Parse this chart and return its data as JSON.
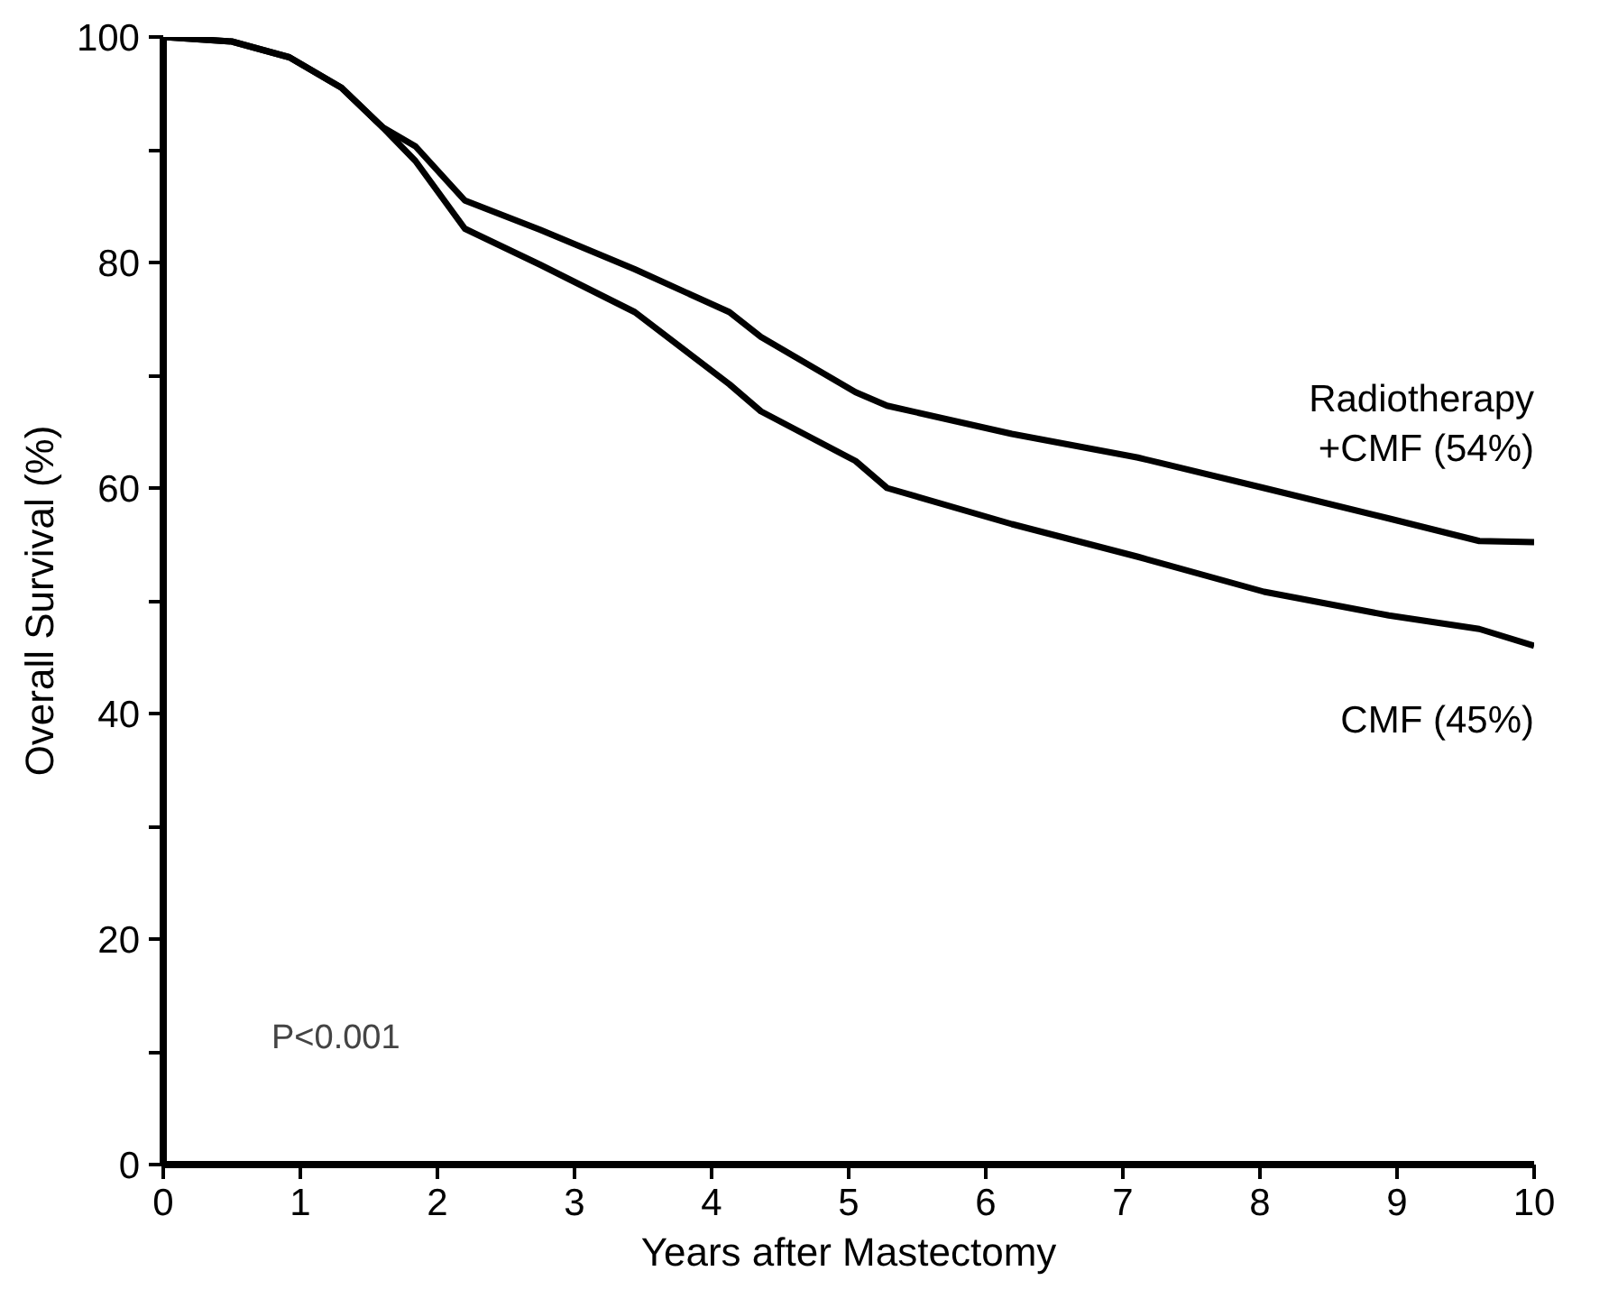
{
  "chart_data": {
    "type": "line",
    "xlabel": "Years after Mastectomy",
    "ylabel": "Overall Survival (%)",
    "xlim": [
      0,
      10
    ],
    "ylim": [
      0,
      100
    ],
    "xticks": [
      0,
      1,
      2,
      3,
      4,
      5,
      6,
      7,
      8,
      9,
      10
    ],
    "yticks": [
      0,
      {
        "value": 10,
        "label": null
      },
      20,
      {
        "value": 30,
        "label": null
      },
      40,
      {
        "value": 50,
        "label": null
      },
      60,
      {
        "value": 70,
        "label": null
      },
      80,
      {
        "value": 90,
        "label": null
      },
      100
    ],
    "grid": false,
    "line_style": "solid",
    "marker": "none",
    "series": [
      {
        "name": "Radiotherapy\n+CMF (54%)",
        "color": "#000000",
        "x": [
          0,
          0.5,
          0.92,
          1.3,
          1.6,
          1.84,
          2.2,
          2.75,
          3.44,
          4.13,
          4.36,
          5.05,
          5.28,
          6.19,
          7.11,
          8.03,
          8.94,
          9.6,
          10
        ],
        "values": [
          100,
          99.6,
          98.2,
          95.5,
          92,
          90.3,
          85.5,
          82.9,
          79.4,
          75.6,
          73.4,
          68.5,
          67.3,
          64.8,
          62.7,
          60,
          57.3,
          55.3,
          55.2
        ]
      },
      {
        "name": "CMF (45%)",
        "color": "#000000",
        "x": [
          0,
          0.5,
          0.92,
          1.3,
          1.6,
          1.84,
          2.2,
          2.75,
          3.44,
          4.13,
          4.36,
          5.05,
          5.28,
          6.19,
          7.11,
          8.03,
          8.94,
          9.6,
          10
        ],
        "values": [
          100,
          99.6,
          98.2,
          95.5,
          92,
          89,
          83,
          79.8,
          75.6,
          69.2,
          66.8,
          62.4,
          60,
          56.8,
          53.9,
          50.8,
          48.7,
          47.5,
          46
        ]
      }
    ],
    "annotations": [
      "P<0.001"
    ]
  }
}
